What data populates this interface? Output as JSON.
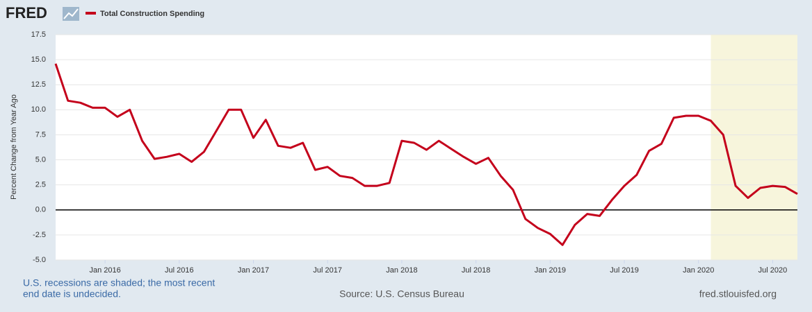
{
  "logo": "FRED",
  "chart_data": {
    "type": "line",
    "series": [
      {
        "name": "Total Construction Spending",
        "color": "#c4001b",
        "values": [
          14.6,
          10.9,
          10.7,
          10.2,
          10.2,
          9.3,
          10.0,
          6.9,
          5.1,
          5.3,
          5.6,
          4.8,
          5.8,
          7.9,
          10.0,
          10.0,
          7.2,
          9.0,
          6.4,
          6.2,
          6.7,
          4.0,
          4.3,
          3.4,
          3.2,
          2.4,
          2.4,
          2.7,
          6.9,
          6.7,
          6.0,
          6.9,
          6.1,
          5.3,
          4.6,
          5.2,
          3.4,
          2.0,
          -0.9,
          -1.8,
          -2.4,
          -3.5,
          -1.5,
          -0.4,
          -0.6,
          1.0,
          2.4,
          3.5,
          5.9,
          6.6,
          9.2,
          9.4,
          9.4,
          8.9,
          7.5,
          2.4,
          1.2,
          2.2,
          2.4,
          2.3,
          1.6
        ]
      }
    ],
    "x": [
      "2015-09",
      "2015-10",
      "2015-11",
      "2015-12",
      "2016-01",
      "2016-02",
      "2016-03",
      "2016-04",
      "2016-05",
      "2016-06",
      "2016-07",
      "2016-08",
      "2016-09",
      "2016-10",
      "2016-11",
      "2016-12",
      "2017-01",
      "2017-02",
      "2017-03",
      "2017-04",
      "2017-05",
      "2017-06",
      "2017-07",
      "2017-08",
      "2017-09",
      "2017-10",
      "2017-11",
      "2017-12",
      "2018-01",
      "2018-02",
      "2018-03",
      "2018-04",
      "2018-05",
      "2018-06",
      "2018-07",
      "2018-08",
      "2018-09",
      "2018-10",
      "2018-11",
      "2018-12",
      "2019-01",
      "2019-02",
      "2019-03",
      "2019-04",
      "2019-05",
      "2019-06",
      "2019-07",
      "2019-08",
      "2019-09",
      "2019-10",
      "2019-11",
      "2019-12",
      "2020-01",
      "2020-02",
      "2020-03",
      "2020-04",
      "2020-05",
      "2020-06",
      "2020-07",
      "2020-08",
      "2020-09"
    ],
    "xlim": [
      "2015-09",
      "2020-09"
    ],
    "xticks": [
      {
        "value": "2016-01",
        "label": "Jan 2016"
      },
      {
        "value": "2016-07",
        "label": "Jul 2016"
      },
      {
        "value": "2017-01",
        "label": "Jan 2017"
      },
      {
        "value": "2017-07",
        "label": "Jul 2017"
      },
      {
        "value": "2018-01",
        "label": "Jan 2018"
      },
      {
        "value": "2018-07",
        "label": "Jul 2018"
      },
      {
        "value": "2019-01",
        "label": "Jan 2019"
      },
      {
        "value": "2019-07",
        "label": "Jul 2019"
      },
      {
        "value": "2020-01",
        "label": "Jan 2020"
      },
      {
        "value": "2020-07",
        "label": "Jul 2020"
      }
    ],
    "ylim": [
      -5,
      17.5
    ],
    "yticks": [
      {
        "value": -5,
        "label": "-5.0"
      },
      -2.5,
      {
        "value": 0,
        "label": "0.0"
      },
      2.5,
      {
        "value": 5,
        "label": "5.0"
      },
      7.5,
      {
        "value": 10,
        "label": "10.0"
      },
      12.5,
      {
        "value": 15,
        "label": "15.0"
      },
      17.5
    ],
    "ylabel": "Percent Change from Year Ago",
    "grid": true,
    "zero_line": true,
    "recessions": [
      {
        "start": "2020-02",
        "end": "2020-09"
      }
    ],
    "recession_color": "#f7f5dc",
    "recession_note": [
      "U.S. recessions are shaded; the most recent",
      "end date is undecided."
    ],
    "source": "Source: U.S. Census Bureau",
    "site": "fred.stlouisfed.org"
  }
}
